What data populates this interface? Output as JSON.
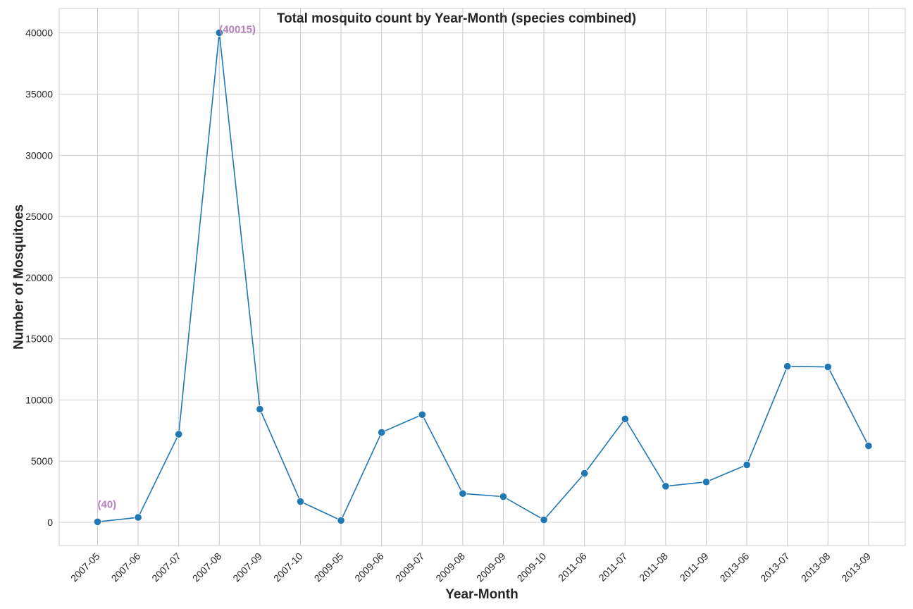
{
  "chart_data": {
    "type": "line",
    "title": "Total mosquito count by Year-Month (species combined)",
    "xlabel": "Year-Month",
    "ylabel": "Number of Mosquitoes",
    "categories": [
      "2007-05",
      "2007-06",
      "2007-07",
      "2007-08",
      "2007-09",
      "2007-10",
      "2009-05",
      "2009-06",
      "2009-07",
      "2009-08",
      "2009-09",
      "2009-10",
      "2011-06",
      "2011-07",
      "2011-08",
      "2011-09",
      "2013-06",
      "2013-07",
      "2013-08",
      "2013-09"
    ],
    "values": [
      40,
      400,
      7200,
      40015,
      9250,
      1700,
      150,
      7350,
      8800,
      2350,
      2100,
      200,
      4000,
      8450,
      2950,
      3300,
      4700,
      12750,
      12700,
      6250
    ],
    "ylim": [
      -1900,
      42000
    ],
    "yticks": [
      0,
      5000,
      10000,
      15000,
      20000,
      25000,
      30000,
      35000,
      40000
    ],
    "grid": true,
    "annotations": [
      {
        "category": "2007-05",
        "value": 40,
        "text": "(40)"
      },
      {
        "category": "2007-08",
        "value": 40015,
        "text": "(40015)"
      }
    ],
    "colors": {
      "line": "#1f77b4",
      "marker": "#1f77b4",
      "annotation": "#b77fbd",
      "grid": "#cccccc",
      "axis_text": "#262626"
    }
  }
}
